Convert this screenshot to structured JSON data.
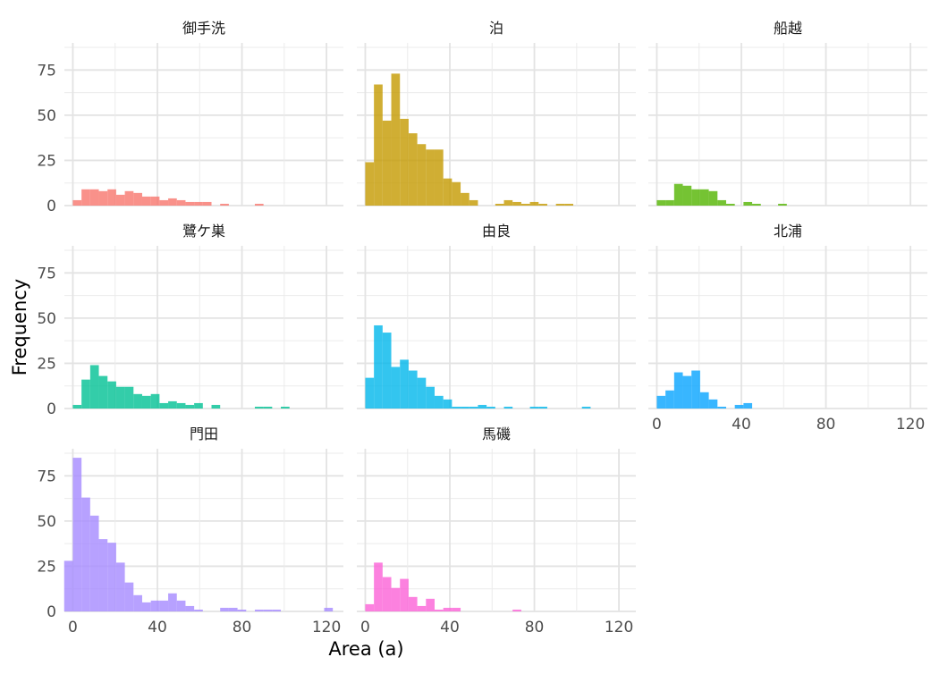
{
  "chart_data": {
    "type": "bar",
    "subtype": "faceted-histogram",
    "xlabel": "Area (a)",
    "ylabel": "Frequency",
    "x_ticks": [
      0,
      40,
      80,
      120
    ],
    "y_ticks": [
      0,
      25,
      50,
      75
    ],
    "xlim": [
      -4,
      128
    ],
    "ylim": [
      0,
      90
    ],
    "bin_width": 4.1,
    "grid": true,
    "legend": "none",
    "layout": "3x3 facets",
    "series": [
      {
        "name": "御手洗",
        "color": "#F8766D",
        "bins": [
          [
            0,
            3
          ],
          [
            4.1,
            9
          ],
          [
            8.2,
            9
          ],
          [
            12.3,
            8
          ],
          [
            16.4,
            9
          ],
          [
            20.5,
            6
          ],
          [
            24.6,
            8
          ],
          [
            28.7,
            7
          ],
          [
            32.8,
            5
          ],
          [
            36.9,
            5
          ],
          [
            41,
            3
          ],
          [
            45.1,
            4
          ],
          [
            49.2,
            3
          ],
          [
            53.3,
            2
          ],
          [
            57.4,
            2
          ],
          [
            61.5,
            2
          ],
          [
            65.6,
            0
          ],
          [
            69.7,
            1
          ],
          [
            73.8,
            0
          ],
          [
            77.9,
            0
          ],
          [
            82,
            0
          ],
          [
            86.1,
            1
          ]
        ]
      },
      {
        "name": "泊",
        "color": "#C49A00",
        "bins": [
          [
            0,
            24
          ],
          [
            4.1,
            67
          ],
          [
            8.2,
            47
          ],
          [
            12.3,
            73
          ],
          [
            16.4,
            48
          ],
          [
            20.5,
            40
          ],
          [
            24.6,
            34
          ],
          [
            28.7,
            31
          ],
          [
            32.8,
            31
          ],
          [
            36.9,
            15
          ],
          [
            41,
            13
          ],
          [
            45.1,
            7
          ],
          [
            49.2,
            3
          ],
          [
            53.3,
            0
          ],
          [
            57.4,
            0
          ],
          [
            61.5,
            1
          ],
          [
            65.6,
            3
          ],
          [
            69.7,
            2
          ],
          [
            73.8,
            1
          ],
          [
            77.9,
            2
          ],
          [
            82,
            1
          ],
          [
            86.1,
            0
          ],
          [
            90.2,
            1
          ],
          [
            94.3,
            1
          ]
        ]
      },
      {
        "name": "船越",
        "color": "#53B400",
        "bins": [
          [
            0,
            3
          ],
          [
            4.1,
            3
          ],
          [
            8.2,
            12
          ],
          [
            12.3,
            11
          ],
          [
            16.4,
            9
          ],
          [
            20.5,
            9
          ],
          [
            24.6,
            8
          ],
          [
            28.7,
            3
          ],
          [
            32.8,
            1
          ],
          [
            36.9,
            0
          ],
          [
            41,
            2
          ],
          [
            45.1,
            1
          ],
          [
            49.2,
            0
          ],
          [
            53.3,
            0
          ],
          [
            57.4,
            1
          ]
        ]
      },
      {
        "name": "鷺ケ巣",
        "color": "#00C094",
        "bins": [
          [
            0,
            2
          ],
          [
            4.1,
            16
          ],
          [
            8.2,
            24
          ],
          [
            12.3,
            18
          ],
          [
            16.4,
            15
          ],
          [
            20.5,
            12
          ],
          [
            24.6,
            12
          ],
          [
            28.7,
            8
          ],
          [
            32.8,
            7
          ],
          [
            36.9,
            8
          ],
          [
            41,
            3
          ],
          [
            45.1,
            4
          ],
          [
            49.2,
            3
          ],
          [
            53.3,
            2
          ],
          [
            57.4,
            3
          ],
          [
            61.5,
            0
          ],
          [
            65.6,
            2
          ],
          [
            69.7,
            0
          ],
          [
            73.8,
            0
          ],
          [
            77.9,
            0
          ],
          [
            82,
            0
          ],
          [
            86.1,
            1
          ],
          [
            90.2,
            1
          ],
          [
            94.3,
            0
          ],
          [
            98.4,
            1
          ]
        ]
      },
      {
        "name": "由良",
        "color": "#00B6EB",
        "bins": [
          [
            0,
            17
          ],
          [
            4.1,
            46
          ],
          [
            8.2,
            42
          ],
          [
            12.3,
            23
          ],
          [
            16.4,
            27
          ],
          [
            20.5,
            21
          ],
          [
            24.6,
            17
          ],
          [
            28.7,
            12
          ],
          [
            32.8,
            7
          ],
          [
            36.9,
            5
          ],
          [
            41,
            1
          ],
          [
            45.1,
            1
          ],
          [
            49.2,
            1
          ],
          [
            53.3,
            2
          ],
          [
            57.4,
            1
          ],
          [
            61.5,
            0
          ],
          [
            65.6,
            1
          ],
          [
            69.7,
            0
          ],
          [
            73.8,
            0
          ],
          [
            77.9,
            1
          ],
          [
            82,
            1
          ],
          [
            86.1,
            0
          ],
          [
            90.2,
            0
          ],
          [
            94.3,
            0
          ],
          [
            98.4,
            0
          ],
          [
            102.5,
            1
          ]
        ]
      },
      {
        "name": "北浦",
        "color": "#06A4FF",
        "bins": [
          [
            0,
            7
          ],
          [
            4.1,
            10
          ],
          [
            8.2,
            20
          ],
          [
            12.3,
            18
          ],
          [
            16.4,
            21
          ],
          [
            20.5,
            9
          ],
          [
            24.6,
            5
          ],
          [
            28.7,
            1
          ],
          [
            32.8,
            0
          ],
          [
            36.9,
            2
          ],
          [
            41,
            3
          ]
        ]
      },
      {
        "name": "門田",
        "color": "#A58AFF",
        "bins": [
          [
            -4.1,
            28
          ],
          [
            0,
            85
          ],
          [
            4.1,
            63
          ],
          [
            8.2,
            53
          ],
          [
            12.3,
            40
          ],
          [
            16.4,
            38
          ],
          [
            20.5,
            27
          ],
          [
            24.6,
            16
          ],
          [
            28.7,
            9
          ],
          [
            32.8,
            5
          ],
          [
            36.9,
            6
          ],
          [
            41,
            6
          ],
          [
            45.1,
            10
          ],
          [
            49.2,
            6
          ],
          [
            53.3,
            3
          ],
          [
            57.4,
            1
          ],
          [
            61.5,
            0
          ],
          [
            65.6,
            0
          ],
          [
            69.7,
            2
          ],
          [
            73.8,
            2
          ],
          [
            77.9,
            1
          ],
          [
            82,
            0
          ],
          [
            86.1,
            1
          ],
          [
            90.2,
            1
          ],
          [
            94.3,
            1
          ],
          [
            98.4,
            0
          ],
          [
            102.5,
            0
          ],
          [
            106.6,
            0
          ],
          [
            110.7,
            0
          ],
          [
            114.8,
            0
          ],
          [
            118.9,
            2
          ]
        ]
      },
      {
        "name": "馬磯",
        "color": "#FB61D7",
        "bins": [
          [
            0,
            4
          ],
          [
            4.1,
            27
          ],
          [
            8.2,
            19
          ],
          [
            12.3,
            13
          ],
          [
            16.4,
            18
          ],
          [
            20.5,
            8
          ],
          [
            24.6,
            3
          ],
          [
            28.7,
            7
          ],
          [
            32.8,
            1
          ],
          [
            36.9,
            2
          ],
          [
            41,
            2
          ],
          [
            45.1,
            0
          ],
          [
            49.2,
            0
          ],
          [
            53.3,
            0
          ],
          [
            57.4,
            0
          ],
          [
            61.5,
            0
          ],
          [
            65.6,
            0
          ],
          [
            69.7,
            1
          ]
        ]
      }
    ]
  }
}
